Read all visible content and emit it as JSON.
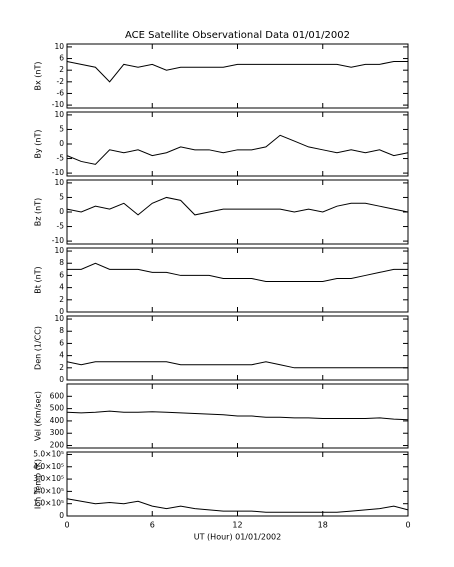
{
  "chart_data": [
    {
      "type": "line",
      "title": "ACE Satellite Observational Data   01/01/2002",
      "ylabel": "Bx (nT)",
      "x": [
        0,
        1,
        2,
        3,
        4,
        5,
        6,
        7,
        8,
        9,
        10,
        11,
        12,
        13,
        14,
        15,
        16,
        17,
        18,
        19,
        20,
        21,
        22,
        23,
        24
      ],
      "xlim": [
        0,
        24
      ],
      "series": [
        {
          "color": "#000000",
          "values": [
            5,
            4,
            3,
            -2,
            4,
            3,
            4,
            2,
            3,
            3,
            3,
            3,
            4,
            4,
            4,
            4,
            4,
            4,
            4,
            4,
            3,
            4,
            4,
            5,
            5
          ]
        }
      ],
      "ylim": [
        -11,
        11
      ],
      "yticks": [
        -10,
        -6,
        -2,
        2,
        6,
        10
      ]
    },
    {
      "type": "line",
      "ylabel": "By (nT)",
      "x": [
        0,
        1,
        2,
        3,
        4,
        5,
        6,
        7,
        8,
        9,
        10,
        11,
        12,
        13,
        14,
        15,
        16,
        17,
        18,
        19,
        20,
        21,
        22,
        23,
        24
      ],
      "xlim": [
        0,
        24
      ],
      "series": [
        {
          "color": "#000000",
          "values": [
            -4,
            -6,
            -7,
            -2,
            -3,
            -2,
            -4,
            -3,
            -1,
            -2,
            -2,
            -3,
            -2,
            -2,
            -1,
            3,
            1,
            -1,
            -2,
            -3,
            -2,
            -3,
            -2,
            -4,
            -3
          ]
        }
      ],
      "ylim": [
        -11,
        11
      ],
      "yticks": [
        -10,
        -5,
        0,
        5,
        10
      ]
    },
    {
      "type": "line",
      "ylabel": "Bz (nT)",
      "x": [
        0,
        1,
        2,
        3,
        4,
        5,
        6,
        7,
        8,
        9,
        10,
        11,
        12,
        13,
        14,
        15,
        16,
        17,
        18,
        19,
        20,
        21,
        22,
        23,
        24
      ],
      "xlim": [
        0,
        24
      ],
      "series": [
        {
          "color": "#000000",
          "values": [
            1,
            0,
            2,
            1,
            3,
            -1,
            3,
            5,
            4,
            -1,
            0,
            1,
            1,
            1,
            1,
            1,
            0,
            1,
            0,
            2,
            3,
            3,
            2,
            1,
            0
          ]
        }
      ],
      "ylim": [
        -11,
        11
      ],
      "yticks": [
        -10,
        -5,
        0,
        5,
        10
      ]
    },
    {
      "type": "line",
      "ylabel": "Bt (nT)",
      "x": [
        0,
        1,
        2,
        3,
        4,
        5,
        6,
        7,
        8,
        9,
        10,
        11,
        12,
        13,
        14,
        15,
        16,
        17,
        18,
        19,
        20,
        21,
        22,
        23,
        24
      ],
      "xlim": [
        0,
        24
      ],
      "series": [
        {
          "color": "#000000",
          "values": [
            7,
            7,
            8,
            7,
            7,
            7,
            6.5,
            6.5,
            6,
            6,
            6,
            5.5,
            5.5,
            5.5,
            5,
            5,
            5,
            5,
            5,
            5.5,
            5.5,
            6,
            6.5,
            7,
            7
          ]
        }
      ],
      "ylim": [
        0,
        10.5
      ],
      "yticks": [
        0,
        2,
        4,
        6,
        8,
        10
      ]
    },
    {
      "type": "line",
      "ylabel": "Den (1/CC)",
      "x": [
        0,
        1,
        2,
        3,
        4,
        5,
        6,
        7,
        8,
        9,
        10,
        11,
        12,
        13,
        14,
        15,
        16,
        17,
        18,
        19,
        20,
        21,
        22,
        23,
        24
      ],
      "xlim": [
        0,
        24
      ],
      "series": [
        {
          "color": "#000000",
          "values": [
            3,
            2.5,
            3,
            3,
            3,
            3,
            3,
            3,
            2.5,
            2.5,
            2.5,
            2.5,
            2.5,
            2.5,
            3,
            2.5,
            2,
            2,
            2,
            2,
            2,
            2,
            2,
            2,
            2
          ]
        }
      ],
      "ylim": [
        0,
        10.5
      ],
      "yticks": [
        0,
        2,
        4,
        6,
        8,
        10
      ]
    },
    {
      "type": "line",
      "ylabel": "Vel (Km/sec)",
      "x": [
        0,
        1,
        2,
        3,
        4,
        5,
        6,
        7,
        8,
        9,
        10,
        11,
        12,
        13,
        14,
        15,
        16,
        17,
        18,
        19,
        20,
        21,
        22,
        23,
        24
      ],
      "xlim": [
        0,
        24
      ],
      "series": [
        {
          "color": "#000000",
          "values": [
            470,
            465,
            470,
            480,
            470,
            470,
            475,
            470,
            465,
            460,
            455,
            450,
            440,
            440,
            430,
            430,
            425,
            425,
            420,
            420,
            420,
            420,
            425,
            415,
            410
          ]
        }
      ],
      "ylim": [
        180,
        700
      ],
      "yticks": [
        200,
        300,
        400,
        500,
        600
      ]
    },
    {
      "type": "line",
      "ylabel": "Ion Temp (K)",
      "xlabel": "UT (Hour)   01/01/2002",
      "x": [
        0,
        1,
        2,
        3,
        4,
        5,
        6,
        7,
        8,
        9,
        10,
        11,
        12,
        13,
        14,
        15,
        16,
        17,
        18,
        19,
        20,
        21,
        22,
        23,
        24
      ],
      "xlim": [
        0,
        24
      ],
      "xticks": [
        0,
        6,
        12,
        18,
        {
          "value": 24,
          "label": "0"
        }
      ],
      "series": [
        {
          "color": "#000000",
          "values": [
            140000,
            120000,
            100000,
            110000,
            100000,
            120000,
            80000,
            60000,
            80000,
            60000,
            50000,
            40000,
            40000,
            40000,
            30000,
            30000,
            30000,
            30000,
            30000,
            30000,
            40000,
            50000,
            60000,
            80000,
            50000
          ]
        }
      ],
      "ylim": [
        0,
        520000
      ],
      "yticks": [
        0,
        {
          "value": 100000,
          "label": "1.0×10⁵"
        },
        {
          "value": 200000,
          "label": "2.0×10⁵"
        },
        {
          "value": 300000,
          "label": "3.0×10⁵"
        },
        {
          "value": 400000,
          "label": "4.0×10⁵"
        },
        {
          "value": 500000,
          "label": "5.0×10⁵"
        }
      ]
    }
  ]
}
